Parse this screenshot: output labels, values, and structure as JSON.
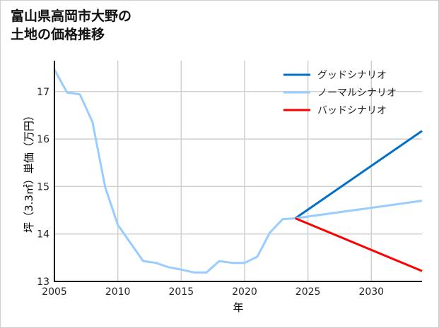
{
  "chart_data": {
    "type": "line",
    "title": [
      "富山県高岡市大野の",
      "土地の価格推移"
    ],
    "xlabel": "年",
    "ylabel": "坪（3.3㎡）単価（万円）",
    "xlim": [
      2005,
      2034
    ],
    "ylim": [
      13,
      17.65
    ],
    "xticks": [
      2005,
      2010,
      2015,
      2020,
      2025,
      2030
    ],
    "yticks": [
      13,
      14,
      15,
      16,
      17
    ],
    "grid": true,
    "legend_position": "top-right",
    "historical": {
      "x": [
        2005,
        2006,
        2007,
        2008,
        2009,
        2010,
        2011,
        2012,
        2013,
        2014,
        2015,
        2016,
        2017,
        2018,
        2019,
        2020,
        2021,
        2022,
        2023,
        2024
      ],
      "y": [
        17.46,
        16.98,
        16.94,
        16.36,
        14.99,
        14.19,
        13.81,
        13.43,
        13.39,
        13.3,
        13.25,
        13.19,
        13.19,
        13.43,
        13.39,
        13.39,
        13.52,
        14.03,
        14.31,
        14.33
      ]
    },
    "series": [
      {
        "name": "グッドシナリオ",
        "color": "#0070c8",
        "x": [
          2024,
          2034
        ],
        "y": [
          14.33,
          16.17
        ]
      },
      {
        "name": "ノーマルシナリオ",
        "color": "#99ccff",
        "x": [
          2024,
          2034
        ],
        "y": [
          14.33,
          14.7
        ]
      },
      {
        "name": "バッドシナリオ",
        "color": "#ff0000",
        "x": [
          2024,
          2034
        ],
        "y": [
          14.33,
          13.22
        ]
      }
    ],
    "historical_color": "#99ccff"
  }
}
